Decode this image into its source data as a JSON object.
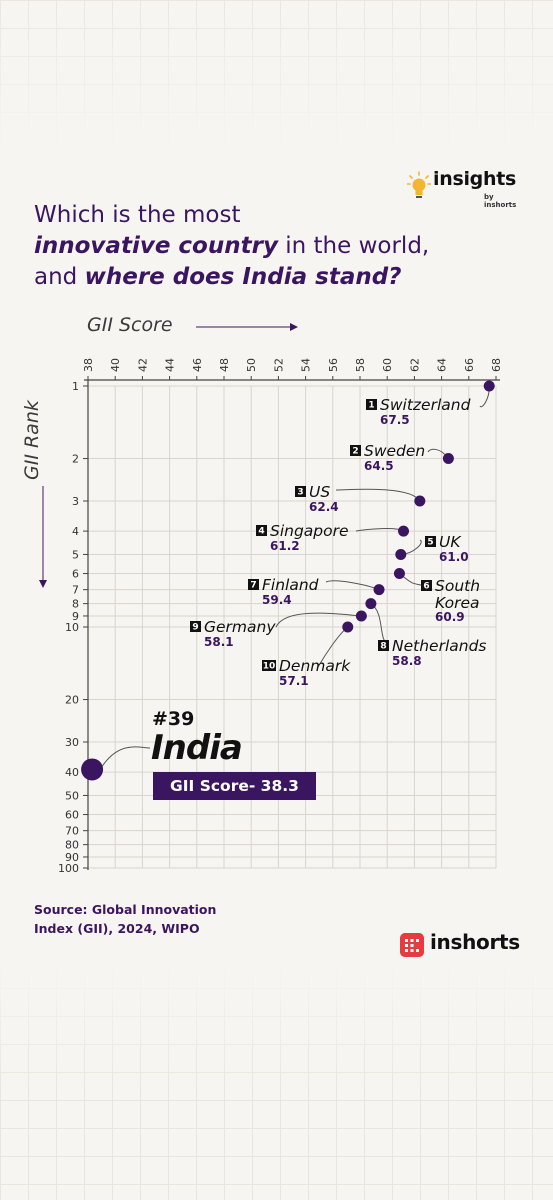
{
  "brand": {
    "name": "insights",
    "byline": "by inshorts"
  },
  "title": {
    "line1": "Which is the most",
    "line2_em": "innovative country",
    "line2_rest": " in the world,",
    "line3_pre": "and ",
    "line3_em": "where does India stand?"
  },
  "axes": {
    "x_title": "GII Score",
    "y_title": "GII Rank"
  },
  "india": {
    "rank_label": "#39",
    "name": "India",
    "score_label": "GII Score- 38.3"
  },
  "footer": {
    "source_line1": "Source: Global Innovation",
    "source_line2": "Index (GII), 2024, WIPO",
    "logo": "inshorts"
  },
  "colors": {
    "accent": "#3b1660",
    "point": "#3b1660",
    "logo_red": "#e63b3f",
    "bulb": "#f2b632"
  },
  "chart_data": {
    "type": "scatter",
    "xlabel": "GII Score",
    "ylabel": "GII Rank",
    "xlim": [
      38,
      68
    ],
    "x_ticks": [
      38,
      40,
      42,
      44,
      46,
      48,
      50,
      52,
      54,
      56,
      58,
      60,
      62,
      64,
      66,
      68
    ],
    "y_scale": "log",
    "ylim": [
      1,
      100
    ],
    "y_ticks": [
      1,
      2,
      3,
      4,
      5,
      6,
      7,
      8,
      9,
      10,
      20,
      30,
      40,
      50,
      60,
      70,
      80,
      90,
      100
    ],
    "grid": true,
    "points": [
      {
        "rank": 1,
        "country": "Switzerland",
        "score": 67.5,
        "score_label": "67.5"
      },
      {
        "rank": 2,
        "country": "Sweden",
        "score": 64.5,
        "score_label": "64.5"
      },
      {
        "rank": 3,
        "country": "US",
        "score": 62.4,
        "score_label": "62.4"
      },
      {
        "rank": 4,
        "country": "Singapore",
        "score": 61.2,
        "score_label": "61.2"
      },
      {
        "rank": 5,
        "country": "UK",
        "score": 61.0,
        "score_label": "61.0"
      },
      {
        "rank": 6,
        "country": "South Korea",
        "score": 60.9,
        "score_label": "60.9"
      },
      {
        "rank": 7,
        "country": "Finland",
        "score": 59.4,
        "score_label": "59.4"
      },
      {
        "rank": 8,
        "country": "Netherlands",
        "score": 58.8,
        "score_label": "58.8"
      },
      {
        "rank": 9,
        "country": "Germany",
        "score": 58.1,
        "score_label": "58.1"
      },
      {
        "rank": 10,
        "country": "Denmark",
        "score": 57.1,
        "score_label": "57.1"
      },
      {
        "rank": 39,
        "country": "India",
        "score": 38.3
      }
    ]
  }
}
